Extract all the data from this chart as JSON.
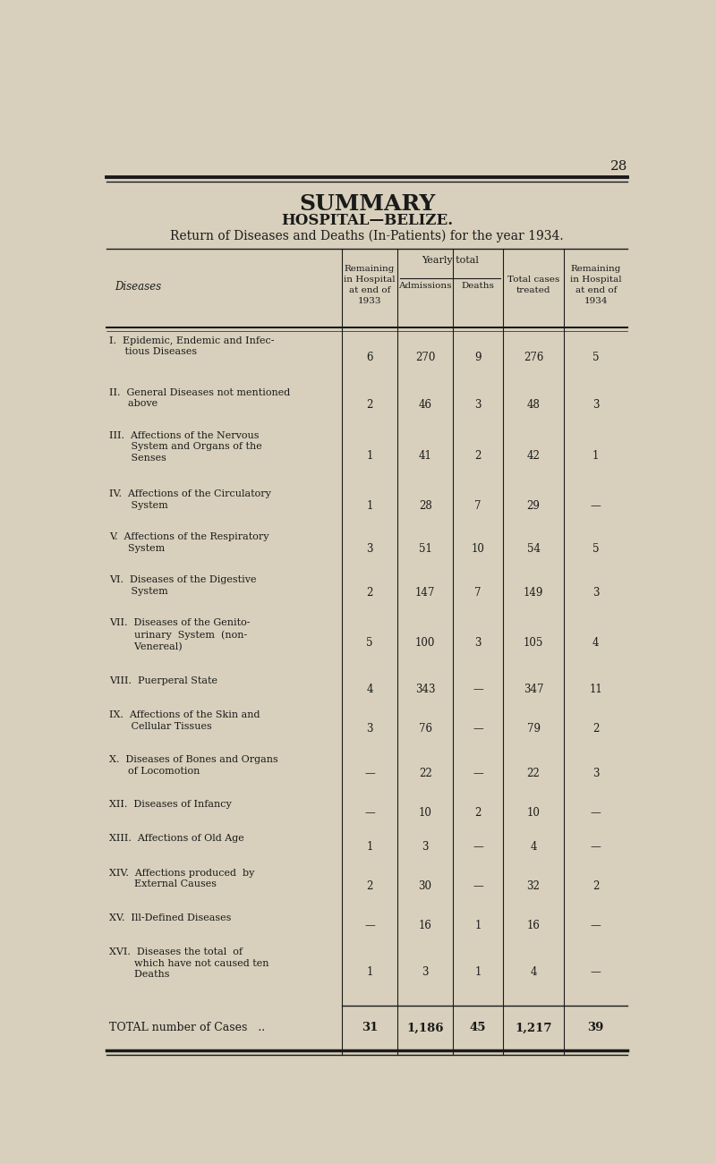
{
  "page_number": "28",
  "title1": "SUMMARY",
  "title2": "HOSPITAL—BELIZE.",
  "title3": "Return of Diseases and Deaths (In-Patients) for the year 1934.",
  "bg_color": "#d8d0bc",
  "rows": [
    {
      "label": "I.  Epidemic, Endemic and Infec-\n     tious Diseases",
      "remaining_1933": "6",
      "admissions": "270",
      "deaths": "9",
      "total": "276",
      "remaining_1934": "5",
      "nlines": 2
    },
    {
      "label": "II.  General Diseases not mentioned\n      above",
      "remaining_1933": "2",
      "admissions": "46",
      "deaths": "3",
      "total": "48",
      "remaining_1934": "3",
      "nlines": 2
    },
    {
      "label": "III.  Affections of the Nervous\n       System and Organs of the\n       Senses",
      "remaining_1933": "1",
      "admissions": "41",
      "deaths": "2",
      "total": "42",
      "remaining_1934": "1",
      "nlines": 3
    },
    {
      "label": "IV.  Affections of the Circulatory\n       System",
      "remaining_1933": "1",
      "admissions": "28",
      "deaths": "7",
      "total": "29",
      "remaining_1934": "—",
      "nlines": 2
    },
    {
      "label": "V.  Affections of the Respiratory\n      System",
      "remaining_1933": "3",
      "admissions": "51",
      "deaths": "10",
      "total": "54",
      "remaining_1934": "5",
      "nlines": 2
    },
    {
      "label": "VI.  Diseases of the Digestive\n       System",
      "remaining_1933": "2",
      "admissions": "147",
      "deaths": "7",
      "total": "149",
      "remaining_1934": "3",
      "nlines": 2
    },
    {
      "label": "VII.  Diseases of the Genito-\n        urinary  System  (non-\n        Venereal)",
      "remaining_1933": "5",
      "admissions": "100",
      "deaths": "3",
      "total": "105",
      "remaining_1934": "4",
      "nlines": 3
    },
    {
      "label": "VIII.  Puerperal State",
      "remaining_1933": "4",
      "admissions": "343",
      "deaths": "—",
      "total": "347",
      "remaining_1934": "11",
      "nlines": 1
    },
    {
      "label": "IX.  Affections of the Skin and\n       Cellular Tissues",
      "remaining_1933": "3",
      "admissions": "76",
      "deaths": "—",
      "total": "79",
      "remaining_1934": "2",
      "nlines": 2
    },
    {
      "label": "X.  Diseases of Bones and Organs\n      of Locomotion",
      "remaining_1933": "—",
      "admissions": "22",
      "deaths": "—",
      "total": "22",
      "remaining_1934": "3",
      "nlines": 2
    },
    {
      "label": "XII.  Diseases of Infancy",
      "remaining_1933": "—",
      "admissions": "10",
      "deaths": "2",
      "total": "10",
      "remaining_1934": "—",
      "nlines": 1
    },
    {
      "label": "XIII.  Affections of Old Age",
      "remaining_1933": "1",
      "admissions": "3",
      "deaths": "—",
      "total": "4",
      "remaining_1934": "—",
      "nlines": 1
    },
    {
      "label": "XIV.  Affections produced  by\n        External Causes",
      "remaining_1933": "2",
      "admissions": "30",
      "deaths": "—",
      "total": "32",
      "remaining_1934": "2",
      "nlines": 2
    },
    {
      "label": "XV.  Ill-Defined Diseases",
      "remaining_1933": "—",
      "admissions": "16",
      "deaths": "1",
      "total": "16",
      "remaining_1934": "—",
      "nlines": 1
    },
    {
      "label": "XVI.  Diseases the total  of\n        which have not caused ten\n        Deaths",
      "remaining_1933": "1",
      "admissions": "3",
      "deaths": "1",
      "total": "4",
      "remaining_1934": "—",
      "nlines": 3
    }
  ],
  "total_row": {
    "label": "TOTAL number of Cases   ..",
    "remaining_1933": "31",
    "admissions": "1,186",
    "deaths": "45",
    "total": "1,217",
    "remaining_1934": "39"
  }
}
